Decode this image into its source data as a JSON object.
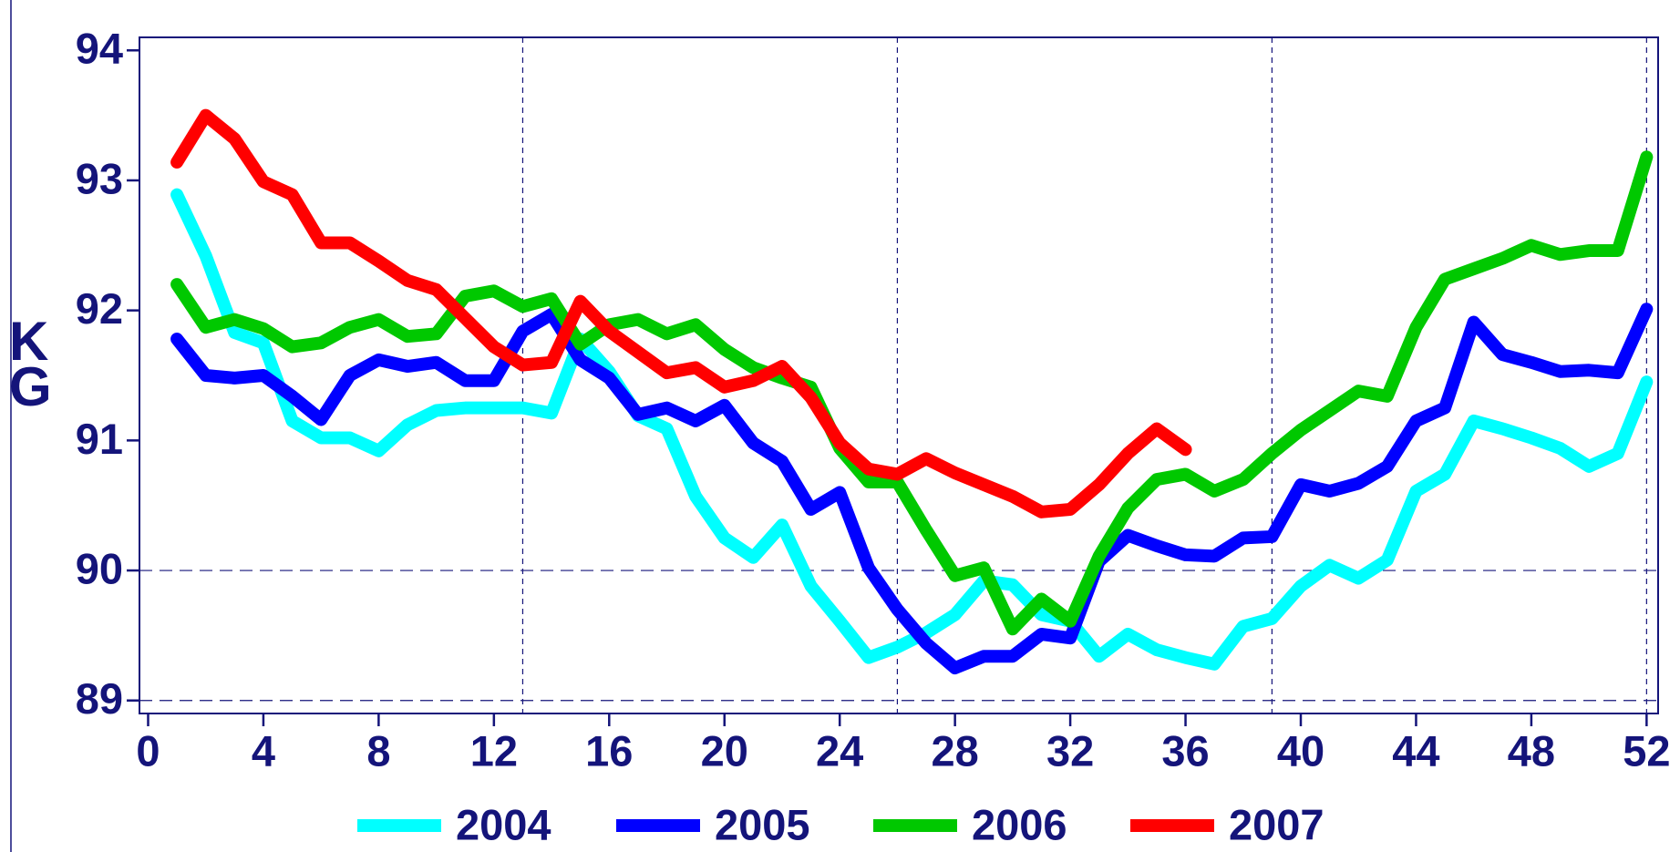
{
  "chart_data": {
    "type": "line",
    "y_label": "KG",
    "x": [
      1,
      2,
      3,
      4,
      5,
      6,
      7,
      8,
      9,
      10,
      11,
      12,
      13,
      14,
      15,
      16,
      17,
      18,
      19,
      20,
      21,
      22,
      23,
      24,
      25,
      26,
      27,
      28,
      29,
      30,
      31,
      32,
      33,
      34,
      35,
      36,
      37,
      38,
      39,
      40,
      41,
      42,
      43,
      44,
      45,
      46,
      47,
      48,
      49,
      50,
      51,
      52
    ],
    "series": [
      {
        "name": "2004",
        "color": "#00ffff",
        "values": [
          92.89,
          92.42,
          91.83,
          91.75,
          91.15,
          91.02,
          91.02,
          90.92,
          91.12,
          91.23,
          91.25,
          91.25,
          91.25,
          91.21,
          91.78,
          91.53,
          91.19,
          91.09,
          90.57,
          90.25,
          90.1,
          90.35,
          89.88,
          89.61,
          89.33,
          89.41,
          89.52,
          89.66,
          89.92,
          89.89,
          89.66,
          89.61,
          89.34,
          89.51,
          89.39,
          89.33,
          89.28,
          89.57,
          89.63,
          89.88,
          90.04,
          89.94,
          90.08,
          90.61,
          90.74,
          91.15,
          91.09,
          91.02,
          90.94,
          90.8,
          90.9,
          91.45
        ]
      },
      {
        "name": "2005",
        "color": "#0000ff",
        "values": [
          91.78,
          91.5,
          91.48,
          91.5,
          91.34,
          91.16,
          91.5,
          91.62,
          91.57,
          91.6,
          91.46,
          91.46,
          91.84,
          91.97,
          91.62,
          91.48,
          91.2,
          91.25,
          91.15,
          91.27,
          90.98,
          90.84,
          90.47,
          90.6,
          90.02,
          89.7,
          89.44,
          89.25,
          89.34,
          89.34,
          89.51,
          89.48,
          90.07,
          90.27,
          90.19,
          90.12,
          90.11,
          90.25,
          90.26,
          90.66,
          90.61,
          90.67,
          90.8,
          91.15,
          91.25,
          91.91,
          91.66,
          91.6,
          91.53,
          91.54,
          91.52,
          92.01
        ]
      },
      {
        "name": "2006",
        "color": "#00c800",
        "values": [
          92.2,
          91.87,
          91.93,
          91.86,
          91.72,
          91.75,
          91.87,
          91.93,
          91.8,
          91.82,
          92.11,
          92.15,
          92.03,
          92.09,
          91.74,
          91.89,
          91.93,
          91.82,
          91.89,
          91.7,
          91.56,
          91.48,
          91.41,
          90.94,
          90.68,
          90.68,
          90.31,
          89.96,
          90.02,
          89.55,
          89.78,
          89.61,
          90.11,
          90.48,
          90.7,
          90.74,
          90.61,
          90.7,
          90.9,
          91.08,
          91.23,
          91.38,
          91.34,
          91.87,
          92.24,
          92.32,
          92.4,
          92.5,
          92.43,
          92.46,
          92.46,
          93.18
        ]
      },
      {
        "name": "2007",
        "color": "#ff0000",
        "values": [
          93.14,
          93.5,
          93.32,
          92.99,
          92.89,
          92.52,
          92.52,
          92.38,
          92.23,
          92.16,
          91.94,
          91.72,
          91.58,
          91.6,
          92.07,
          91.84,
          91.68,
          91.52,
          91.56,
          91.41,
          91.46,
          91.57,
          91.33,
          90.98,
          90.78,
          90.74,
          90.86,
          90.75,
          90.66,
          90.57,
          90.45,
          90.47,
          90.66,
          90.9,
          91.09,
          90.93,
          null,
          null,
          null,
          null,
          null,
          null,
          null,
          null,
          null,
          null,
          null,
          null,
          null,
          null,
          null,
          null
        ]
      }
    ],
    "xlim": [
      -0.3,
      52.4
    ],
    "xticks": [
      0,
      4,
      8,
      12,
      16,
      20,
      24,
      28,
      32,
      36,
      40,
      44,
      48,
      52
    ],
    "ylim": [
      88.9,
      94.1
    ],
    "yticks": [
      89,
      90,
      91,
      92,
      93,
      94
    ],
    "xgrid": [
      13,
      26,
      39,
      52
    ],
    "ygrid": [
      89,
      90
    ],
    "legend": "bottom"
  }
}
